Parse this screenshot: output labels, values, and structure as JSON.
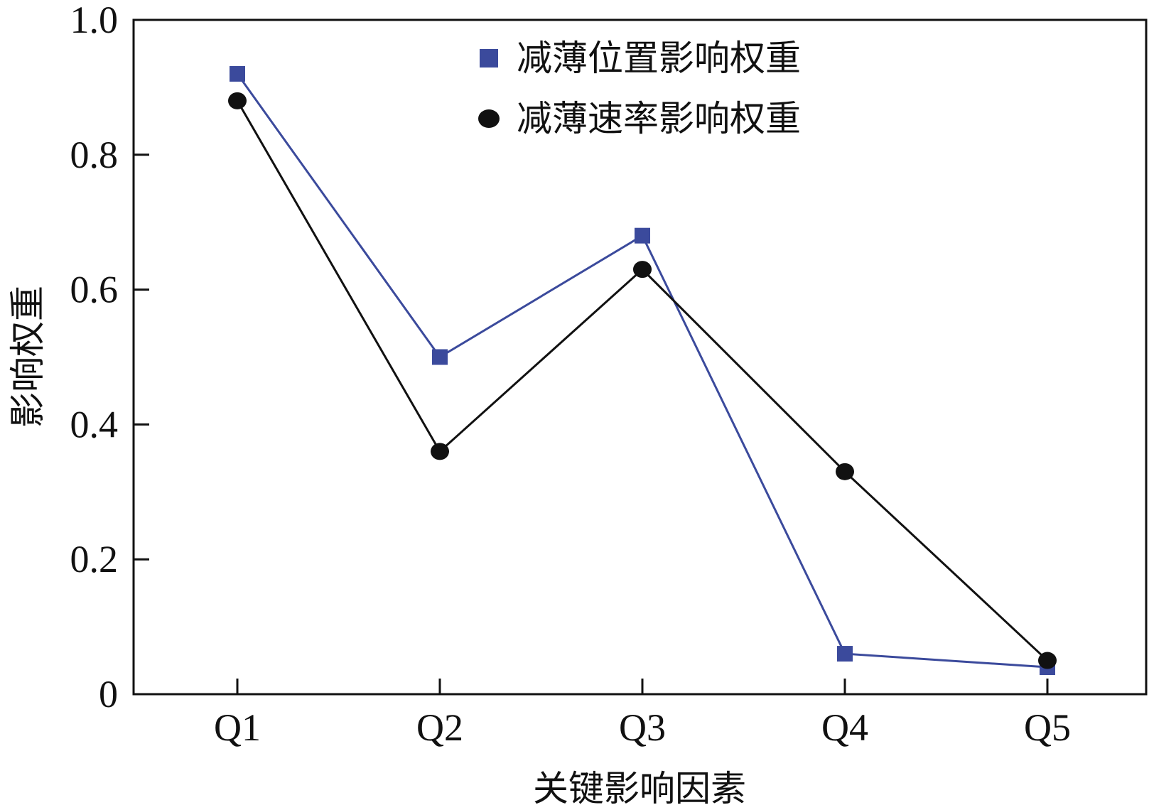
{
  "chart_data": {
    "type": "line",
    "categories": [
      "Q1",
      "Q2",
      "Q3",
      "Q4",
      "Q5"
    ],
    "series": [
      {
        "name": "减薄位置影响权重",
        "color": "#3b4a9c",
        "marker": "square",
        "values": [
          0.92,
          0.5,
          0.68,
          0.06,
          0.04
        ]
      },
      {
        "name": "减薄速率影响权重",
        "color": "#111111",
        "marker": "circle",
        "values": [
          0.88,
          0.36,
          0.63,
          0.33,
          0.05
        ]
      }
    ],
    "title": "",
    "xlabel": "关键影响因素",
    "ylabel": "影响权重",
    "ylim": [
      0,
      1.0
    ],
    "yticks": [
      0,
      0.2,
      0.4,
      0.6,
      0.8,
      1.0
    ],
    "ytick_labels": [
      "0",
      "0.2",
      "0.4",
      "0.6",
      "0.8",
      "1.0"
    ],
    "grid": false,
    "legend_position": "top-right"
  }
}
